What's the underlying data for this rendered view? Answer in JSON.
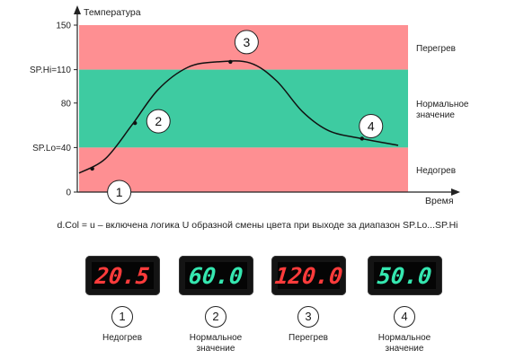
{
  "chart": {
    "y_axis_label": "Температура",
    "x_axis_label": "Время",
    "y_ticks": [
      {
        "label": "150",
        "value": 150
      },
      {
        "label": "SP.Hi=110",
        "value": 110
      },
      {
        "label": "80",
        "value": 80
      },
      {
        "label": "SP.Lo=40",
        "value": 40
      },
      {
        "label": "0",
        "value": 0
      }
    ],
    "y_range": [
      0,
      150
    ],
    "t_range": [
      0,
      100
    ],
    "zones": [
      {
        "name": "Перегрев",
        "from": 110,
        "to": 150,
        "color": "#fe8f92"
      },
      {
        "name": "Нормальное значение",
        "from": 40,
        "to": 110,
        "color": "#3ecba1"
      },
      {
        "name": "Недогрев",
        "from": 0,
        "to": 40,
        "color": "#fe8f92"
      }
    ],
    "zone_labels": [
      "Перегрев",
      "Нормальное значение",
      "Недогрев"
    ],
    "curve_points": [
      {
        "t": 0,
        "v": 17
      },
      {
        "t": 8,
        "v": 30
      },
      {
        "t": 16,
        "v": 60
      },
      {
        "t": 24,
        "v": 92
      },
      {
        "t": 33,
        "v": 112
      },
      {
        "t": 42,
        "v": 117
      },
      {
        "t": 52,
        "v": 116
      },
      {
        "t": 60,
        "v": 100
      },
      {
        "t": 68,
        "v": 72
      },
      {
        "t": 76,
        "v": 55
      },
      {
        "t": 86,
        "v": 48
      },
      {
        "t": 97,
        "v": 42
      }
    ],
    "markers": [
      {
        "id": "1",
        "t": 4,
        "v": 21
      },
      {
        "id": "2",
        "t": 17,
        "v": 62
      },
      {
        "id": "3",
        "t": 46,
        "v": 117
      },
      {
        "id": "4",
        "t": 86,
        "v": 48
      }
    ]
  },
  "caption": "d.Col = u – включена логика U образной смены цвета при выходе за диапазон SP.Lo...SP.Hi",
  "colors": {
    "red_digit": "#ff3b3b",
    "green_digit": "#35e7b0"
  },
  "displays": [
    {
      "value": "20.5",
      "color": "red",
      "index": "1",
      "label_lines": [
        "Недогрев"
      ]
    },
    {
      "value": "60.0",
      "color": "green",
      "index": "2",
      "label_lines": [
        "Нормальное",
        "значение"
      ]
    },
    {
      "value": "120.0",
      "color": "red",
      "index": "3",
      "label_lines": [
        "Перегрев"
      ]
    },
    {
      "value": "50.0",
      "color": "green",
      "index": "4",
      "label_lines": [
        "Нормальное",
        "значение"
      ]
    }
  ]
}
